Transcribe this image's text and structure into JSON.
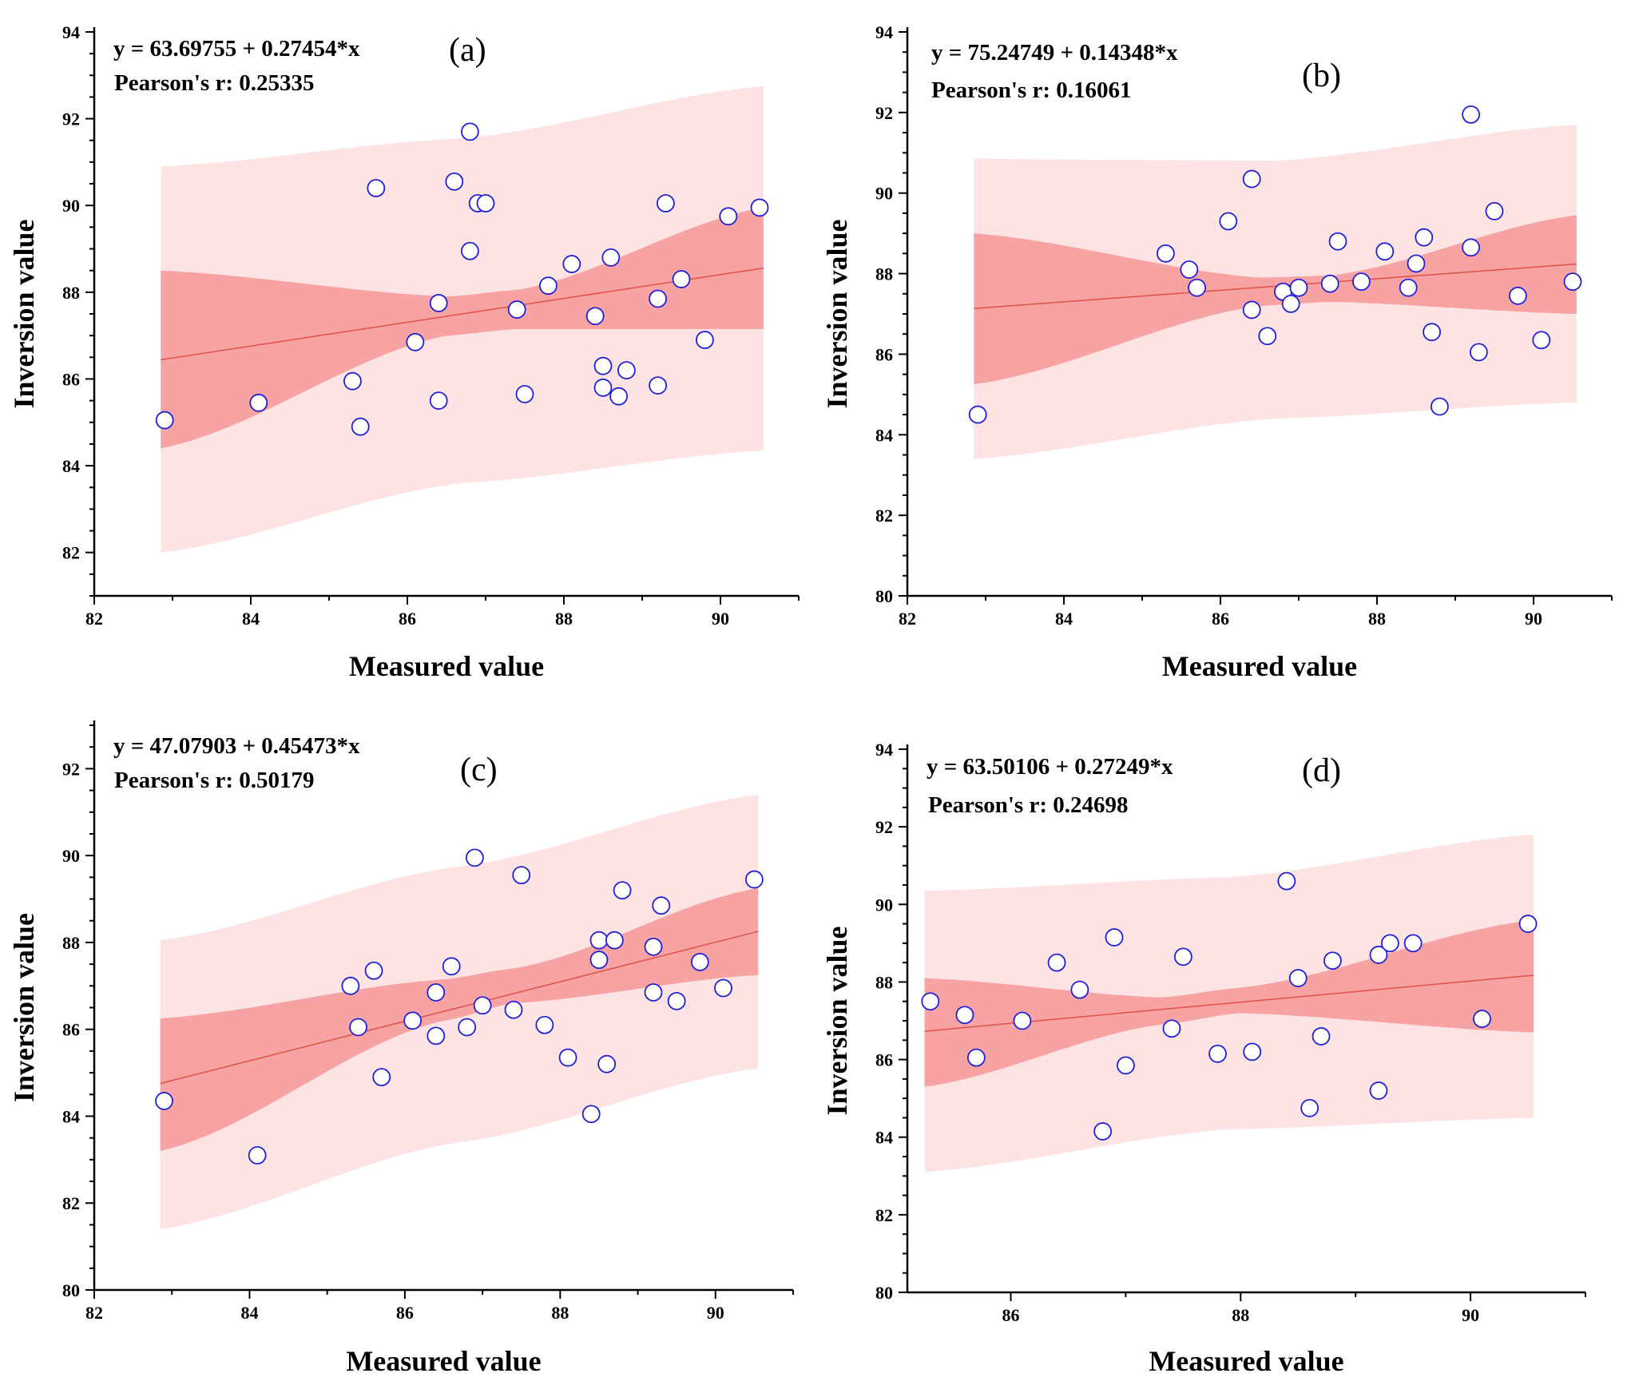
{
  "colors": {
    "prediction_band": "#fde3e3",
    "confidence_band": "#f8a3a3",
    "fit_line": "#e0504a",
    "point_stroke": "#2020d8",
    "point_fill": "#ffffff",
    "axis": "#000000"
  },
  "chart_data": [
    {
      "type": "scatter",
      "panel_label": "(a)",
      "equation": "y = 63.69755 + 0.27454*x",
      "pearson": "Pearson's r: 0.25335",
      "xlabel": "Measured value",
      "ylabel": "Inversion value",
      "xlim": [
        82,
        91
      ],
      "ylim": [
        81,
        94
      ],
      "xticks": [
        82,
        84,
        86,
        88,
        90
      ],
      "yticks": [
        82,
        84,
        86,
        88,
        90,
        92,
        94
      ],
      "fit": {
        "intercept": 63.69755,
        "slope": 0.27454,
        "x_range": [
          82.85,
          90.55
        ]
      },
      "confidence_band": {
        "x": [
          82.85,
          86.5,
          87.4,
          90.55
        ],
        "upper": [
          88.5,
          87.9,
          88.05,
          89.95
        ],
        "lower": [
          84.4,
          87.0,
          87.15,
          87.15
        ]
      },
      "prediction_band": {
        "x": [
          82.85,
          86.7,
          90.55
        ],
        "upper": [
          90.9,
          91.55,
          92.75
        ],
        "lower": [
          82.0,
          83.6,
          84.35
        ]
      },
      "points": [
        {
          "x": 82.9,
          "y": 85.05
        },
        {
          "x": 84.1,
          "y": 85.45
        },
        {
          "x": 85.3,
          "y": 85.95
        },
        {
          "x": 85.4,
          "y": 84.9
        },
        {
          "x": 85.6,
          "y": 90.4
        },
        {
          "x": 86.1,
          "y": 86.85
        },
        {
          "x": 86.4,
          "y": 87.75
        },
        {
          "x": 86.4,
          "y": 85.5
        },
        {
          "x": 86.6,
          "y": 90.55
        },
        {
          "x": 86.8,
          "y": 91.7
        },
        {
          "x": 86.8,
          "y": 88.95
        },
        {
          "x": 86.9,
          "y": 90.05
        },
        {
          "x": 87.0,
          "y": 90.05
        },
        {
          "x": 87.4,
          "y": 87.6
        },
        {
          "x": 87.5,
          "y": 85.65
        },
        {
          "x": 87.8,
          "y": 88.15
        },
        {
          "x": 88.1,
          "y": 88.65
        },
        {
          "x": 88.4,
          "y": 87.45
        },
        {
          "x": 88.5,
          "y": 86.3
        },
        {
          "x": 88.5,
          "y": 85.8
        },
        {
          "x": 88.6,
          "y": 88.8
        },
        {
          "x": 88.7,
          "y": 85.6
        },
        {
          "x": 88.8,
          "y": 86.2
        },
        {
          "x": 89.2,
          "y": 87.85
        },
        {
          "x": 89.2,
          "y": 85.85
        },
        {
          "x": 89.3,
          "y": 90.05
        },
        {
          "x": 89.5,
          "y": 88.3
        },
        {
          "x": 89.8,
          "y": 86.9
        },
        {
          "x": 90.1,
          "y": 89.75
        },
        {
          "x": 90.5,
          "y": 89.95
        }
      ]
    },
    {
      "type": "scatter",
      "panel_label": "(b)",
      "equation": "y = 75.24749 + 0.14348*x",
      "pearson": "Pearson's r: 0.16061",
      "xlabel": "Measured value",
      "ylabel": "Inversion value",
      "xlim": [
        82,
        91
      ],
      "ylim": [
        80,
        94
      ],
      "xticks": [
        82,
        84,
        86,
        88,
        90
      ],
      "yticks": [
        80,
        82,
        84,
        86,
        88,
        90,
        92,
        94
      ],
      "fit": {
        "intercept": 75.24749,
        "slope": 0.14348,
        "x_range": [
          82.85,
          90.55
        ]
      },
      "confidence_band": {
        "x": [
          82.85,
          86.5,
          87.4,
          90.55
        ],
        "upper": [
          89.0,
          87.9,
          87.95,
          89.45
        ],
        "lower": [
          85.25,
          87.2,
          87.3,
          87.0
        ]
      },
      "prediction_band": {
        "x": [
          82.85,
          86.7,
          90.55
        ],
        "upper": [
          90.85,
          90.8,
          91.7
        ],
        "lower": [
          83.4,
          84.4,
          84.8
        ]
      },
      "points": [
        {
          "x": 82.9,
          "y": 84.5
        },
        {
          "x": 85.3,
          "y": 88.5
        },
        {
          "x": 85.6,
          "y": 88.1
        },
        {
          "x": 85.7,
          "y": 87.65
        },
        {
          "x": 86.1,
          "y": 89.3
        },
        {
          "x": 86.4,
          "y": 90.35
        },
        {
          "x": 86.4,
          "y": 87.1
        },
        {
          "x": 86.6,
          "y": 86.45
        },
        {
          "x": 86.8,
          "y": 87.55
        },
        {
          "x": 86.9,
          "y": 87.25
        },
        {
          "x": 87.0,
          "y": 87.65
        },
        {
          "x": 87.4,
          "y": 87.75
        },
        {
          "x": 87.5,
          "y": 88.8
        },
        {
          "x": 87.8,
          "y": 87.8
        },
        {
          "x": 88.1,
          "y": 88.55
        },
        {
          "x": 88.4,
          "y": 87.65
        },
        {
          "x": 88.5,
          "y": 88.25
        },
        {
          "x": 88.6,
          "y": 88.9
        },
        {
          "x": 88.7,
          "y": 86.55
        },
        {
          "x": 88.8,
          "y": 84.7
        },
        {
          "x": 89.2,
          "y": 91.95
        },
        {
          "x": 89.2,
          "y": 88.65
        },
        {
          "x": 89.3,
          "y": 86.05
        },
        {
          "x": 89.5,
          "y": 89.55
        },
        {
          "x": 89.8,
          "y": 87.45
        },
        {
          "x": 90.1,
          "y": 86.35
        },
        {
          "x": 90.5,
          "y": 87.8
        }
      ]
    },
    {
      "type": "scatter",
      "panel_label": "(c)",
      "equation": "y = 47.07903 + 0.45473*x",
      "pearson": "Pearson's r: 0.50179",
      "xlabel": "Measured value",
      "ylabel": "Inversion value",
      "xlim": [
        82,
        91
      ],
      "ylim": [
        80,
        93
      ],
      "xticks": [
        82,
        84,
        86,
        88,
        90
      ],
      "yticks": [
        80,
        82,
        84,
        86,
        88,
        90,
        92
      ],
      "fit": {
        "intercept": 47.07903,
        "slope": 0.45473,
        "x_range": [
          82.85,
          90.55
        ]
      },
      "confidence_band": {
        "x": [
          82.85,
          86.5,
          87.4,
          90.55
        ],
        "upper": [
          86.25,
          87.15,
          87.4,
          89.25
        ],
        "lower": [
          83.2,
          86.2,
          86.6,
          87.25
        ]
      },
      "prediction_band": {
        "x": [
          82.85,
          86.7,
          90.55
        ],
        "upper": [
          88.05,
          89.75,
          91.4
        ],
        "lower": [
          81.4,
          83.4,
          85.1
        ]
      },
      "points": [
        {
          "x": 82.9,
          "y": 84.35
        },
        {
          "x": 84.1,
          "y": 83.1
        },
        {
          "x": 85.3,
          "y": 87.0
        },
        {
          "x": 85.4,
          "y": 86.05
        },
        {
          "x": 85.6,
          "y": 87.35
        },
        {
          "x": 85.7,
          "y": 84.9
        },
        {
          "x": 86.1,
          "y": 86.2
        },
        {
          "x": 86.4,
          "y": 86.85
        },
        {
          "x": 86.4,
          "y": 85.85
        },
        {
          "x": 86.6,
          "y": 87.45
        },
        {
          "x": 86.8,
          "y": 86.05
        },
        {
          "x": 86.9,
          "y": 89.95
        },
        {
          "x": 87.0,
          "y": 86.55
        },
        {
          "x": 87.4,
          "y": 86.45
        },
        {
          "x": 87.5,
          "y": 89.55
        },
        {
          "x": 87.8,
          "y": 86.1
        },
        {
          "x": 88.1,
          "y": 85.35
        },
        {
          "x": 88.4,
          "y": 84.05
        },
        {
          "x": 88.5,
          "y": 88.05
        },
        {
          "x": 88.5,
          "y": 87.6
        },
        {
          "x": 88.6,
          "y": 85.2
        },
        {
          "x": 88.7,
          "y": 88.05
        },
        {
          "x": 88.8,
          "y": 89.2
        },
        {
          "x": 89.2,
          "y": 87.9
        },
        {
          "x": 89.2,
          "y": 86.85
        },
        {
          "x": 89.3,
          "y": 88.85
        },
        {
          "x": 89.5,
          "y": 86.65
        },
        {
          "x": 89.8,
          "y": 87.55
        },
        {
          "x": 90.1,
          "y": 86.95
        },
        {
          "x": 90.5,
          "y": 89.45
        }
      ]
    },
    {
      "type": "scatter",
      "panel_label": "(d)",
      "equation": "y = 63.50106 + 0.27249*x",
      "pearson": "Pearson's r: 0.24698",
      "xlabel": "Measured value",
      "ylabel": "Inversion value",
      "xlim": [
        85.1,
        91.0
      ],
      "ylim": [
        80,
        94
      ],
      "xticks": [
        86,
        88,
        90
      ],
      "yticks": [
        80,
        82,
        84,
        86,
        88,
        90,
        92,
        94
      ],
      "fit": {
        "intercept": 63.50106,
        "slope": 0.27249,
        "x_range": [
          85.25,
          90.55
        ]
      },
      "confidence_band": {
        "x": [
          85.25,
          87.3,
          88.0,
          90.55
        ],
        "upper": [
          88.1,
          87.6,
          87.85,
          89.6
        ],
        "lower": [
          85.3,
          86.9,
          87.2,
          86.7
        ]
      },
      "prediction_band": {
        "x": [
          85.25,
          87.9,
          90.55
        ],
        "upper": [
          90.35,
          90.7,
          91.8
        ],
        "lower": [
          83.1,
          84.2,
          84.5
        ]
      },
      "points": [
        {
          "x": 85.3,
          "y": 87.5
        },
        {
          "x": 85.6,
          "y": 87.15
        },
        {
          "x": 85.7,
          "y": 86.05
        },
        {
          "x": 86.1,
          "y": 87.0
        },
        {
          "x": 86.4,
          "y": 88.5
        },
        {
          "x": 86.6,
          "y": 87.8
        },
        {
          "x": 86.8,
          "y": 84.15
        },
        {
          "x": 86.9,
          "y": 89.15
        },
        {
          "x": 87.0,
          "y": 85.85
        },
        {
          "x": 87.4,
          "y": 86.8
        },
        {
          "x": 87.5,
          "y": 88.65
        },
        {
          "x": 87.8,
          "y": 86.15
        },
        {
          "x": 88.1,
          "y": 86.2
        },
        {
          "x": 88.4,
          "y": 90.6
        },
        {
          "x": 88.5,
          "y": 88.1
        },
        {
          "x": 88.6,
          "y": 84.75
        },
        {
          "x": 88.7,
          "y": 86.6
        },
        {
          "x": 88.8,
          "y": 88.55
        },
        {
          "x": 89.2,
          "y": 88.7
        },
        {
          "x": 89.2,
          "y": 85.2
        },
        {
          "x": 89.3,
          "y": 89.0
        },
        {
          "x": 89.5,
          "y": 89.0
        },
        {
          "x": 90.1,
          "y": 87.05
        },
        {
          "x": 90.5,
          "y": 89.5
        }
      ]
    }
  ]
}
